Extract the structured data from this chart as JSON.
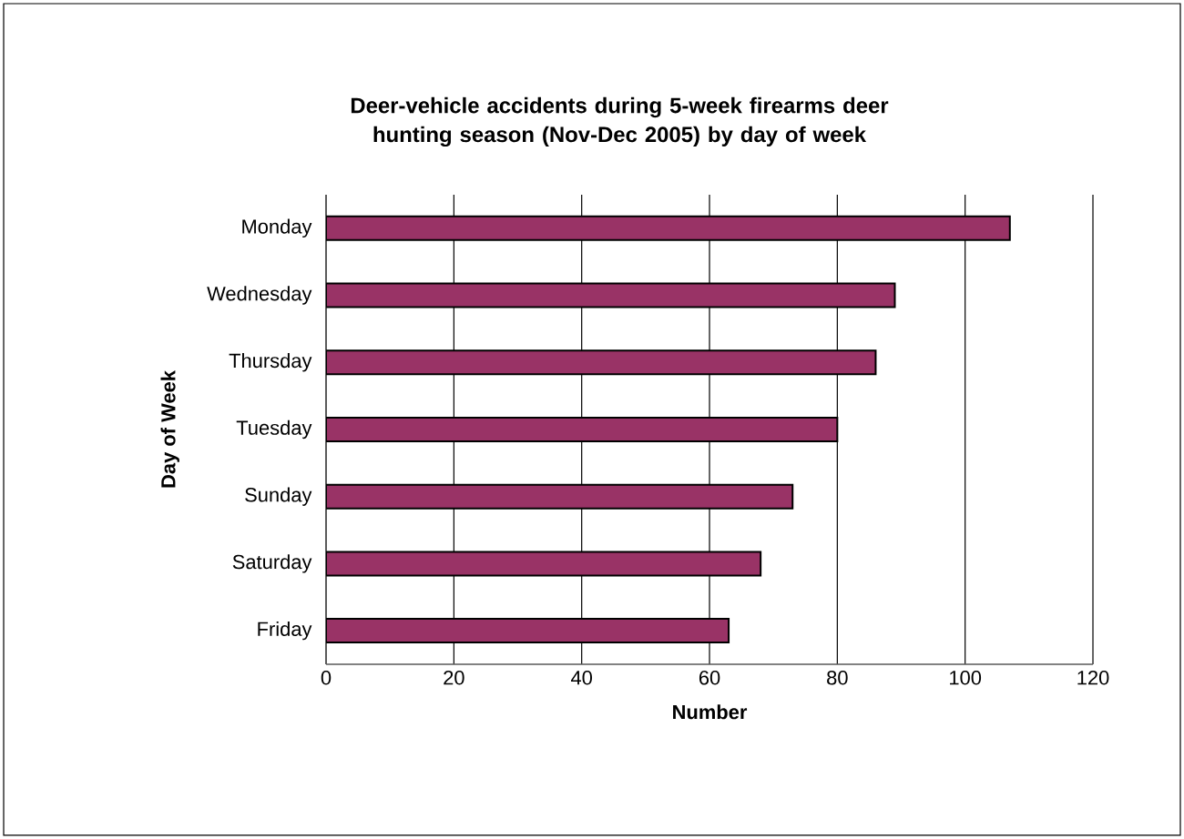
{
  "chart_data": {
    "type": "bar",
    "orientation": "horizontal",
    "title": "Deer-vehicle accidents during 5-week firearms deer hunting season (Nov-Dec 2005) by day of week",
    "xlabel": "Number",
    "ylabel": "Day of Week",
    "categories": [
      "Monday",
      "Wednesday",
      "Thursday",
      "Tuesday",
      "Sunday",
      "Saturday",
      "Friday"
    ],
    "values": [
      107,
      89,
      86,
      80,
      73,
      68,
      63
    ],
    "color": "#993366",
    "xlim": [
      0,
      120
    ],
    "xticks": [
      0,
      20,
      40,
      60,
      80,
      100,
      120
    ],
    "grid": "x"
  }
}
